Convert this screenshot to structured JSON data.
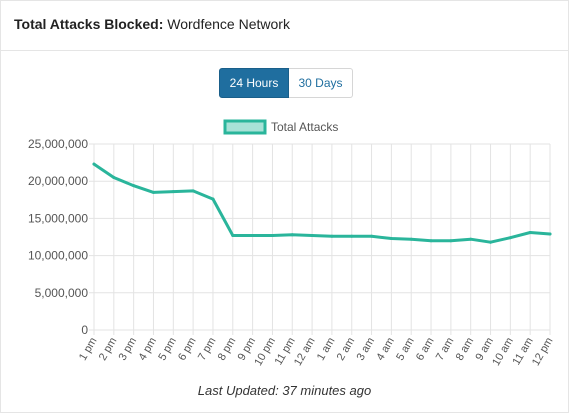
{
  "header": {
    "title_bold": "Total Attacks Blocked:",
    "title_rest": "Wordfence Network"
  },
  "toggle": {
    "active_label": "24 Hours",
    "inactive_label": "30 Days"
  },
  "colors": {
    "line": "#2ab59b",
    "legend_fill": "#a8e2d7",
    "grid": "#e3e3e3",
    "axis_text": "#555555",
    "active_button": "#1f6e9f"
  },
  "footer": {
    "last_updated": "Last Updated: 37 minutes ago"
  },
  "chart_data": {
    "type": "line",
    "title": "",
    "xlabel": "",
    "ylabel": "",
    "grid": true,
    "legend_position": "top-center",
    "ylim": [
      0,
      25000000
    ],
    "y_ticks": [
      0,
      5000000,
      10000000,
      15000000,
      20000000,
      25000000
    ],
    "y_tick_labels": [
      "0",
      "5,000,000",
      "10,000,000",
      "15,000,000",
      "20,000,000",
      "25,000,000"
    ],
    "categories": [
      "1 pm",
      "2 pm",
      "3 pm",
      "4 pm",
      "5 pm",
      "6 pm",
      "7 pm",
      "8 pm",
      "9 pm",
      "10 pm",
      "11 pm",
      "12 am",
      "1 am",
      "2 am",
      "3 am",
      "4 am",
      "5 am",
      "6 am",
      "7 am",
      "8 am",
      "9 am",
      "10 am",
      "11 am",
      "12 pm"
    ],
    "series": [
      {
        "name": "Total Attacks",
        "values": [
          22300000,
          20500000,
          19400000,
          18500000,
          18600000,
          18700000,
          17600000,
          12700000,
          12700000,
          12700000,
          12800000,
          12700000,
          12600000,
          12600000,
          12600000,
          12300000,
          12200000,
          12000000,
          12000000,
          12200000,
          11800000,
          12400000,
          13100000,
          12900000
        ]
      }
    ]
  }
}
